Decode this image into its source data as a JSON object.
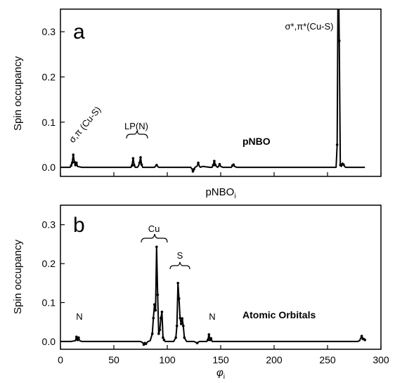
{
  "chart_data": [
    {
      "type": "line",
      "panel_label": "a",
      "xlabel": "pNBO",
      "xlabel_sub": "i",
      "ylabel": "Spin occupancy",
      "xlim": [
        0,
        300
      ],
      "ylim": [
        -0.02,
        0.35
      ],
      "x_ticks_labeled": false,
      "yticks": [
        0.0,
        0.1,
        0.2,
        0.3
      ],
      "ytick_labels": [
        "0.0",
        "0.1",
        "0.2",
        "0.3"
      ],
      "grid": false,
      "series": [
        {
          "x": [
            0,
            9,
            10,
            11,
            12,
            13,
            14,
            15,
            16,
            20,
            30,
            40,
            50,
            60,
            66,
            67,
            68,
            69,
            70,
            72,
            73,
            74,
            75,
            76,
            77,
            80,
            88,
            89,
            90,
            91,
            92,
            100,
            110,
            120,
            122,
            123,
            124,
            125,
            126,
            128,
            129,
            130,
            131,
            133,
            140,
            142,
            143,
            144,
            145,
            147,
            148,
            149,
            150,
            152,
            158,
            160,
            161,
            162,
            163,
            165,
            170,
            180,
            190,
            200,
            210,
            220,
            230,
            240,
            250,
            255,
            258,
            259,
            260,
            261,
            262,
            263,
            264,
            265,
            266,
            267,
            270,
            280,
            285
          ],
          "y": [
            0,
            0,
            0.004,
            0.01,
            0.028,
            0.012,
            0.005,
            0.01,
            0.002,
            0,
            0,
            0,
            0,
            0,
            0,
            0.004,
            0.02,
            0.005,
            0,
            0,
            0.003,
            0.01,
            0.022,
            0.006,
            0,
            0,
            0,
            0.003,
            0.005,
            0.002,
            0,
            0,
            0,
            0,
            0,
            -0.003,
            -0.009,
            -0.004,
            0,
            0.003,
            0.01,
            0.003,
            0,
            0.002,
            0,
            0,
            0.005,
            0.014,
            0.005,
            0,
            0.002,
            0.007,
            0.002,
            0,
            0,
            0,
            0.004,
            0.006,
            0.002,
            0,
            0,
            0,
            0,
            0,
            0,
            0,
            0,
            0,
            0,
            0,
            0,
            0.05,
            0.48,
            0.28,
            0.005,
            0.002,
            0.008,
            0.006,
            0.002,
            0,
            0,
            0,
            0
          ]
        }
      ],
      "annotations": [
        "a",
        "σ,π (Cu-S)",
        "LP(N)",
        "pNBO",
        "σ*,π*(Cu-S)"
      ]
    },
    {
      "type": "line",
      "panel_label": "b",
      "xlabel": "φ",
      "xlabel_sub": "i",
      "ylabel": "Spin occupancy",
      "xlim": [
        0,
        300
      ],
      "ylim": [
        -0.02,
        0.35
      ],
      "xticks": [
        0,
        50,
        100,
        150,
        200,
        250,
        300
      ],
      "xtick_labels": [
        "0",
        "50",
        "100",
        "150",
        "200",
        "250",
        "300"
      ],
      "yticks": [
        0.0,
        0.1,
        0.2,
        0.3
      ],
      "ytick_labels": [
        "0.0",
        "0.1",
        "0.2",
        "0.3"
      ],
      "grid": false,
      "series": [
        {
          "x": [
            0,
            10,
            14,
            15,
            16,
            17,
            18,
            20,
            30,
            40,
            50,
            60,
            70,
            75,
            77,
            78,
            79,
            80,
            82,
            84,
            86,
            87,
            88,
            89,
            90,
            91,
            92,
            93,
            94,
            95,
            96,
            97,
            98,
            100,
            104,
            106,
            108,
            109,
            110,
            111,
            112,
            113,
            114,
            115,
            116,
            118,
            120,
            125,
            128,
            130,
            135,
            137,
            138,
            139,
            140,
            141,
            142,
            145,
            150,
            160,
            180,
            200,
            220,
            240,
            260,
            270,
            278,
            280,
            282,
            283,
            284,
            285
          ],
          "y": [
            0,
            0,
            0.002,
            0.012,
            0.004,
            0.01,
            0.002,
            0,
            0,
            0,
            0,
            0,
            0,
            0,
            -0.003,
            -0.008,
            -0.004,
            -0.006,
            0,
            0.002,
            0.02,
            0.06,
            0.095,
            0.08,
            0.243,
            0.12,
            0.02,
            0.03,
            0.06,
            0.076,
            0.01,
            0.004,
            0,
            0,
            0,
            0,
            0.01,
            0.04,
            0.15,
            0.11,
            0.06,
            0.045,
            0.059,
            0.04,
            0.01,
            0,
            0,
            0,
            -0.004,
            0,
            0,
            0,
            0.004,
            0.018,
            0.004,
            0.008,
            0,
            0,
            0,
            0,
            0,
            0,
            0,
            0,
            0,
            0,
            0,
            0.002,
            0.014,
            0.007,
            0.006,
            0.004
          ]
        }
      ],
      "annotations": [
        "b",
        "Cu",
        "S",
        "N",
        "N",
        "Atomic Orbitals"
      ]
    }
  ]
}
